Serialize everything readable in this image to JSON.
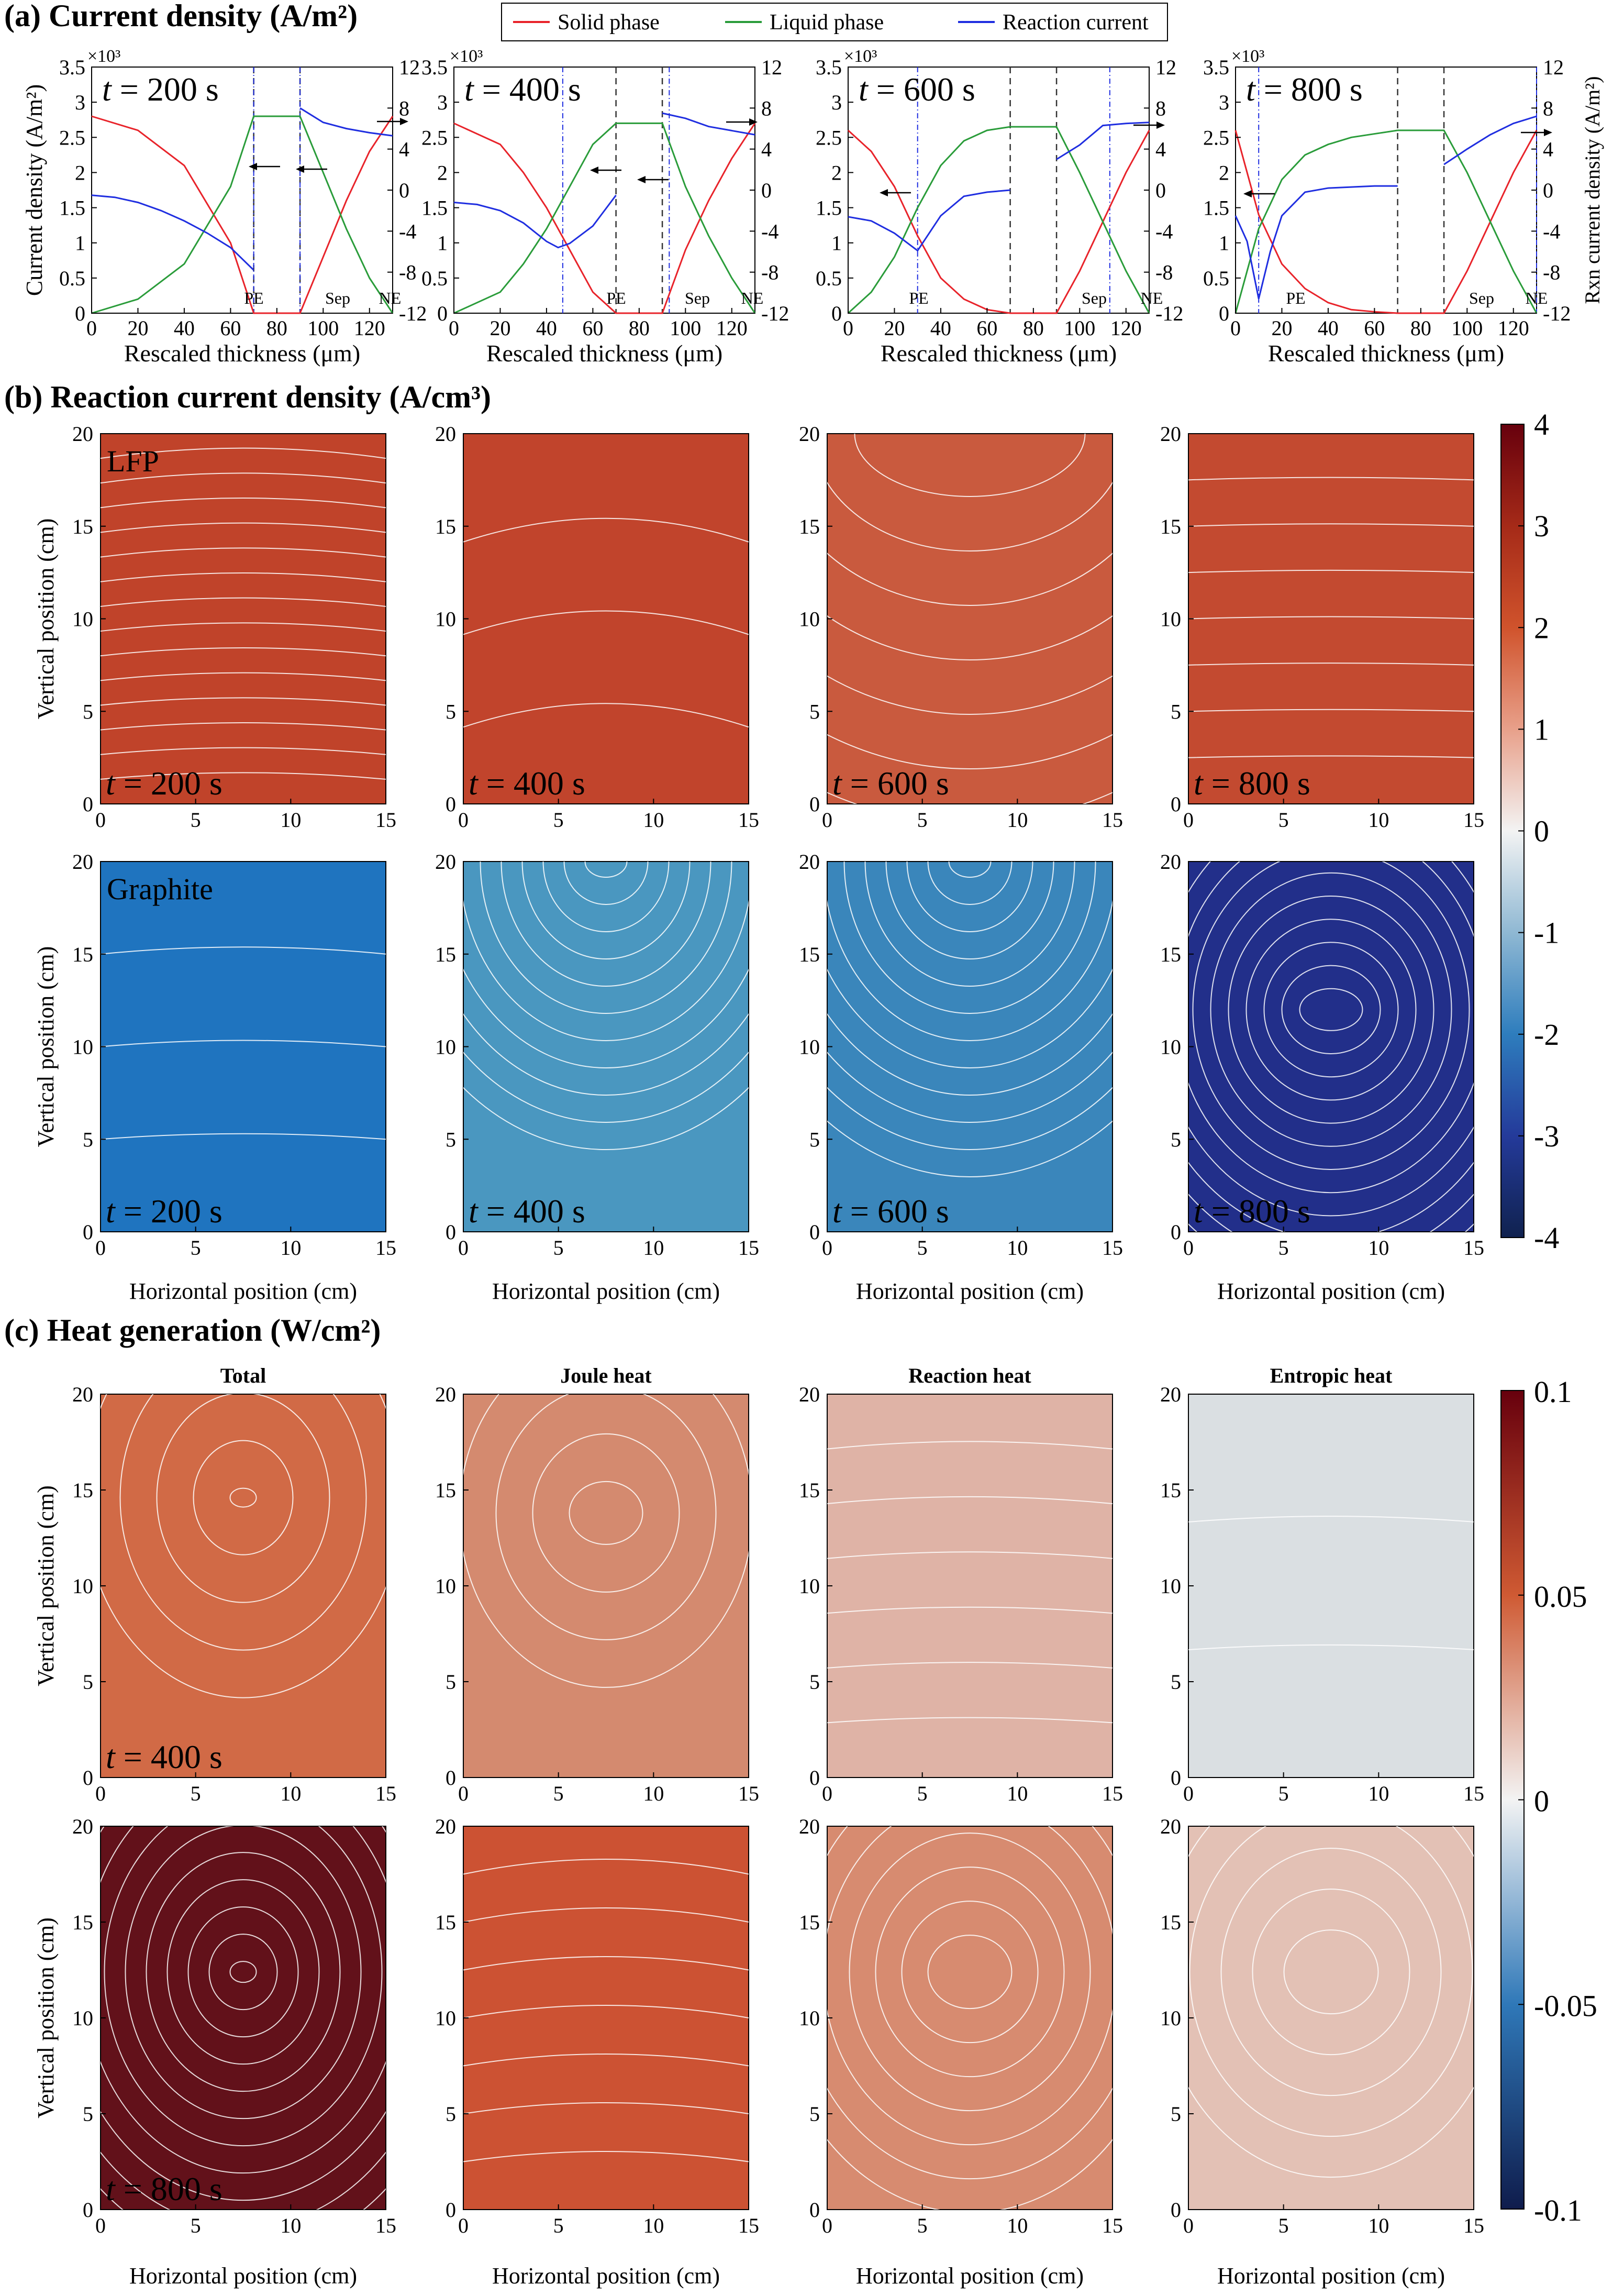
{
  "panel_a": {
    "title": "(a) Current density (A/m²)",
    "legend": [
      {
        "name": "Solid phase",
        "color": "#e8232a"
      },
      {
        "name": "Liquid phase",
        "color": "#2a9c3a"
      },
      {
        "name": "Reaction current",
        "color": "#1f2ee0"
      }
    ],
    "exp_label": "×10³",
    "xlabel": "Rescaled thickness (μm)",
    "ylabel_left": "Current density (A/m²)",
    "ylabel_right": "Rxn current density (A/m²)",
    "region_labels": [
      "PE",
      "Sep",
      "NE"
    ],
    "time_labels": [
      "t = 200 s",
      "t = 400 s",
      "t = 600 s",
      "t = 800 s"
    ],
    "x_ticks": [
      "0",
      "20",
      "40",
      "60",
      "80",
      "100",
      "120"
    ],
    "y_left_ticks": [
      "0",
      "0.5",
      "1",
      "1.5",
      "2",
      "2.5",
      "3",
      "3.5"
    ],
    "y_right_ticks": [
      "-12",
      "-8",
      "-4",
      "0",
      "4",
      "8",
      "12"
    ]
  },
  "panel_b": {
    "title": "(b) Reaction current density (A/cm³)",
    "row_labels": [
      "LFP",
      "Graphite"
    ],
    "time_labels": [
      "t = 200 s",
      "t = 400 s",
      "t = 600 s",
      "t = 800 s"
    ],
    "xlabel": "Horizontal position (cm)",
    "ylabel": "Vertical position (cm)",
    "x_ticks": [
      "0",
      "5",
      "10",
      "15"
    ],
    "y_ticks": [
      "0",
      "5",
      "10",
      "15",
      "20"
    ],
    "colorbar_ticks": [
      "4",
      "3",
      "2",
      "1",
      "0",
      "-1",
      "-2",
      "-3",
      "-4"
    ]
  },
  "panel_c": {
    "title": "(c) Heat generation (W/cm²)",
    "column_titles": [
      "Total",
      "Joule heat",
      "Reaction heat",
      "Entropic heat"
    ],
    "time_labels": [
      "t = 400 s",
      "t = 800 s"
    ],
    "xlabel": "Horizontal position (cm)",
    "ylabel": "Vertical position (cm)",
    "x_ticks": [
      "0",
      "5",
      "10",
      "15"
    ],
    "y_ticks": [
      "0",
      "5",
      "10",
      "15",
      "20"
    ],
    "colorbar_ticks": [
      "0.1",
      "0.05",
      "0",
      "-0.05",
      "-0.1"
    ]
  },
  "chart_data": [
    {
      "type": "line",
      "title": "Current density, t = 200 s",
      "xlabel": "Rescaled thickness (μm)",
      "ylabel": "Current density (A/m²) ×10³",
      "xlim": [
        0,
        130
      ],
      "ylim": [
        0,
        3.5
      ],
      "y2lim": [
        -12,
        12
      ],
      "separator_bounds": [
        70,
        90
      ],
      "series": [
        {
          "name": "Solid phase",
          "axis": "left",
          "x": [
            0,
            20,
            40,
            60,
            70,
            90,
            100,
            110,
            120,
            130
          ],
          "values": [
            2.8,
            2.6,
            2.1,
            1.0,
            0,
            0,
            0.8,
            1.6,
            2.3,
            2.8
          ]
        },
        {
          "name": "Liquid phase",
          "axis": "left",
          "x": [
            0,
            20,
            40,
            60,
            70,
            90,
            100,
            110,
            120,
            130
          ],
          "values": [
            0,
            0.2,
            0.7,
            1.8,
            2.8,
            2.8,
            2.0,
            1.2,
            0.5,
            0
          ]
        },
        {
          "name": "Reaction current",
          "axis": "right",
          "x": [
            0,
            10,
            20,
            30,
            40,
            50,
            60,
            70,
            90,
            100,
            110,
            120,
            130
          ],
          "values": [
            -0.5,
            -0.7,
            -1.2,
            -2.0,
            -3.0,
            -4.2,
            -5.6,
            -7.8,
            8.0,
            6.6,
            6.0,
            5.6,
            5.3
          ]
        }
      ]
    },
    {
      "type": "line",
      "title": "Current density, t = 400 s",
      "xlabel": "Rescaled thickness (μm)",
      "ylabel": "Current density (A/m²) ×10³",
      "xlim": [
        0,
        130
      ],
      "ylim": [
        0,
        3.5
      ],
      "y2lim": [
        -12,
        12
      ],
      "separator_bounds": [
        70,
        90
      ],
      "series": [
        {
          "name": "Solid phase",
          "axis": "left",
          "x": [
            0,
            20,
            30,
            40,
            50,
            60,
            70,
            90,
            100,
            110,
            120,
            130
          ],
          "values": [
            2.7,
            2.4,
            2.0,
            1.5,
            0.9,
            0.3,
            0,
            0,
            0.9,
            1.6,
            2.2,
            2.7
          ]
        },
        {
          "name": "Liquid phase",
          "axis": "left",
          "x": [
            0,
            20,
            30,
            40,
            50,
            60,
            70,
            90,
            100,
            110,
            120,
            130
          ],
          "values": [
            0,
            0.3,
            0.7,
            1.2,
            1.8,
            2.4,
            2.7,
            2.7,
            1.8,
            1.1,
            0.5,
            0
          ]
        },
        {
          "name": "Reaction current",
          "axis": "right",
          "x": [
            0,
            10,
            20,
            30,
            40,
            45,
            50,
            60,
            70,
            90,
            100,
            110,
            120,
            130
          ],
          "values": [
            -1.2,
            -1.4,
            -2.0,
            -3.2,
            -5.0,
            -5.6,
            -5.2,
            -3.5,
            -0.5,
            7.5,
            7.0,
            6.2,
            5.8,
            5.4
          ]
        }
      ]
    },
    {
      "type": "line",
      "title": "Current density, t = 600 s",
      "xlabel": "Rescaled thickness (μm)",
      "ylabel": "Current density (A/m²) ×10³",
      "xlim": [
        0,
        130
      ],
      "ylim": [
        0,
        3.5
      ],
      "y2lim": [
        -12,
        12
      ],
      "separator_bounds": [
        70,
        90
      ],
      "series": [
        {
          "name": "Solid phase",
          "axis": "left",
          "x": [
            0,
            10,
            20,
            30,
            40,
            50,
            60,
            70,
            90,
            100,
            110,
            120,
            130
          ],
          "values": [
            2.6,
            2.3,
            1.8,
            1.1,
            0.5,
            0.2,
            0.05,
            0,
            0,
            0.6,
            1.3,
            2.0,
            2.6
          ]
        },
        {
          "name": "Liquid phase",
          "axis": "left",
          "x": [
            0,
            10,
            20,
            30,
            40,
            50,
            60,
            70,
            90,
            100,
            110,
            120,
            130
          ],
          "values": [
            0,
            0.3,
            0.8,
            1.5,
            2.1,
            2.45,
            2.6,
            2.65,
            2.65,
            2.0,
            1.3,
            0.6,
            0
          ]
        },
        {
          "name": "Reaction current",
          "axis": "right",
          "x": [
            0,
            10,
            20,
            30,
            40,
            50,
            60,
            70,
            90,
            100,
            110,
            120,
            130
          ],
          "values": [
            -2.6,
            -3.0,
            -4.2,
            -5.9,
            -2.5,
            -0.6,
            -0.2,
            0,
            3.0,
            4.4,
            6.3,
            6.5,
            6.6
          ]
        }
      ]
    },
    {
      "type": "line",
      "title": "Current density, t = 800 s",
      "xlabel": "Rescaled thickness (μm)",
      "ylabel": "Current density (A/m²) ×10³",
      "xlim": [
        0,
        130
      ],
      "ylim": [
        0,
        3.5
      ],
      "y2lim": [
        -12,
        12
      ],
      "separator_bounds": [
        70,
        90
      ],
      "series": [
        {
          "name": "Solid phase",
          "axis": "left",
          "x": [
            0,
            5,
            10,
            20,
            30,
            40,
            50,
            60,
            70,
            90,
            100,
            110,
            120,
            130
          ],
          "values": [
            2.6,
            2.0,
            1.4,
            0.7,
            0.35,
            0.15,
            0.05,
            0.02,
            0,
            0,
            0.6,
            1.3,
            2.0,
            2.6
          ]
        },
        {
          "name": "Liquid phase",
          "axis": "left",
          "x": [
            0,
            5,
            10,
            20,
            30,
            40,
            50,
            60,
            70,
            90,
            100,
            110,
            120,
            130
          ],
          "values": [
            0,
            0.6,
            1.2,
            1.9,
            2.25,
            2.4,
            2.5,
            2.55,
            2.6,
            2.6,
            2.0,
            1.3,
            0.6,
            0
          ]
        },
        {
          "name": "Reaction current",
          "axis": "right",
          "x": [
            0,
            5,
            10,
            15,
            20,
            30,
            40,
            50,
            60,
            70,
            90,
            100,
            110,
            120,
            130
          ],
          "values": [
            -2.5,
            -5.0,
            -10.6,
            -6.0,
            -2.5,
            -0.2,
            0.2,
            0.3,
            0.4,
            0.4,
            2.5,
            4.0,
            5.4,
            6.5,
            7.2
          ]
        }
      ]
    },
    {
      "type": "heatmap",
      "title": "Reaction current density (A/cm³) – LFP",
      "xlabel": "Horizontal position (cm)",
      "ylabel": "Vertical position (cm)",
      "xlim": [
        0,
        15
      ],
      "ylim": [
        0,
        20
      ],
      "clim": [
        -4,
        4
      ],
      "times": [
        "t = 200 s",
        "t = 400 s",
        "t = 600 s",
        "t = 800 s"
      ],
      "approx_values": [
        2.45,
        2.35,
        2.05,
        2.25
      ]
    },
    {
      "type": "heatmap",
      "title": "Reaction current density (A/cm³) – Graphite",
      "xlabel": "Horizontal position (cm)",
      "ylabel": "Vertical position (cm)",
      "xlim": [
        0,
        15
      ],
      "ylim": [
        0,
        20
      ],
      "clim": [
        -4,
        4
      ],
      "times": [
        "t = 200 s",
        "t = 400 s",
        "t = 600 s",
        "t = 800 s"
      ],
      "approx_values": [
        -2.3,
        -1.5,
        -1.8,
        -3.4
      ]
    },
    {
      "type": "heatmap",
      "title": "Heat generation (W/cm²), t = 400 s",
      "xlabel": "Horizontal position (cm)",
      "ylabel": "Vertical position (cm)",
      "xlim": [
        0,
        15
      ],
      "ylim": [
        0,
        20
      ],
      "clim": [
        -0.1,
        0.1
      ],
      "columns": [
        "Total",
        "Joule heat",
        "Reaction heat",
        "Entropic heat"
      ],
      "approx_values": [
        0.045,
        0.032,
        0.018,
        0.003
      ]
    },
    {
      "type": "heatmap",
      "title": "Heat generation (W/cm²), t = 800 s",
      "xlabel": "Horizontal position (cm)",
      "ylabel": "Vertical position (cm)",
      "xlim": [
        0,
        15
      ],
      "ylim": [
        0,
        20
      ],
      "clim": [
        -0.1,
        0.1
      ],
      "columns": [
        "Total",
        "Joule heat",
        "Reaction heat",
        "Entropic heat"
      ],
      "approx_values": [
        0.095,
        0.055,
        0.035,
        0.02
      ]
    }
  ]
}
